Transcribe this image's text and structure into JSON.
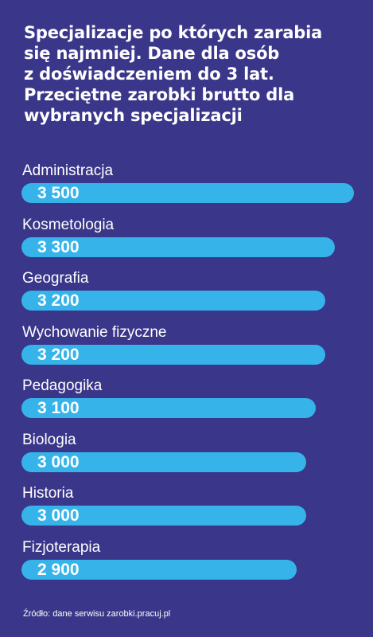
{
  "title_lines": [
    "Specjalizacje po których zarabia",
    "się najmniej. Dane dla osób",
    "z doświadczeniem do 3 lat.",
    "Przeciętne zarobki brutto dla",
    "wybranych specjalizacji"
  ],
  "chart_data": {
    "type": "bar",
    "orientation": "horizontal",
    "categories": [
      "Administracja",
      "Kosmetologia",
      "Geografia",
      "Wychowanie fizyczne",
      "Pedagogika",
      "Biologia",
      "Historia",
      "Fizjoterapia"
    ],
    "values": [
      3500,
      3300,
      3200,
      3200,
      3100,
      3000,
      3000,
      2900
    ],
    "value_labels": [
      "3 500",
      "3 300",
      "3 200",
      "3 200",
      "3 100",
      "3 000",
      "3 000",
      "2 900"
    ],
    "xlim": [
      0,
      3500
    ],
    "grid": false,
    "legend": "none"
  },
  "colors": {
    "background": "#3a3689",
    "bar": "#36b4ea",
    "text": "#ffffff"
  },
  "source": "Źródło: dane serwisu zarobki.pracuj.pl"
}
